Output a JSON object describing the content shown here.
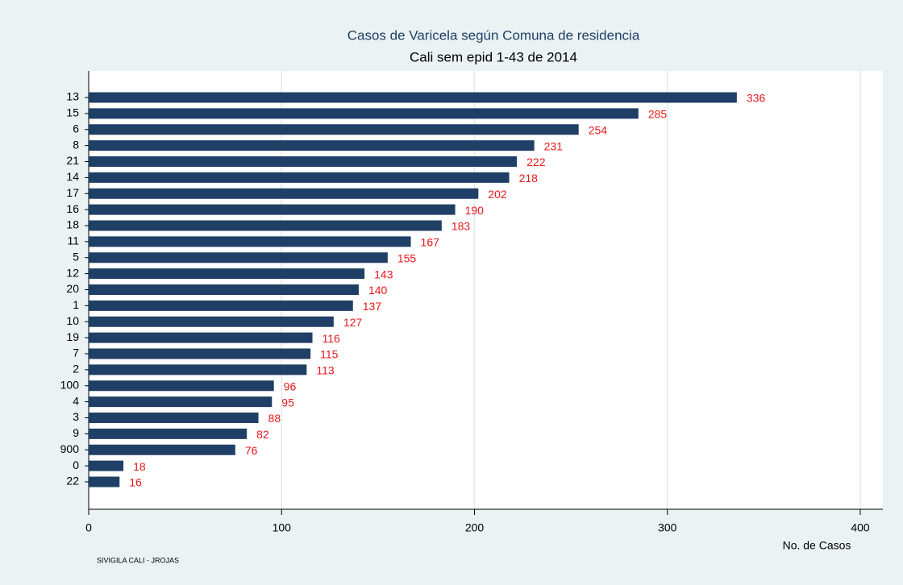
{
  "chart_data": {
    "type": "barh",
    "title": "Casos de Varicela según Comuna de residencia",
    "subtitle": "Cali sem epid 1-43 de 2014",
    "x_label": "No. de Casos",
    "footer": "SIVIGILA CALI -  JROJAS",
    "categories": [
      "13",
      "15",
      "6",
      "8",
      "21",
      "14",
      "17",
      "16",
      "18",
      "11",
      "5",
      "12",
      "20",
      "1",
      "10",
      "19",
      "7",
      "2",
      "100",
      "4",
      "3",
      "9",
      "900",
      "0",
      "22"
    ],
    "values": [
      336,
      285,
      254,
      231,
      222,
      218,
      202,
      190,
      183,
      167,
      155,
      143,
      140,
      137,
      127,
      116,
      115,
      113,
      96,
      95,
      88,
      82,
      76,
      18,
      16
    ],
    "color": "#1f3f66",
    "label_color": "#e8191c",
    "xlim": [
      0,
      400
    ],
    "xticks": [
      0,
      100,
      200,
      300,
      400
    ],
    "grid": true
  }
}
